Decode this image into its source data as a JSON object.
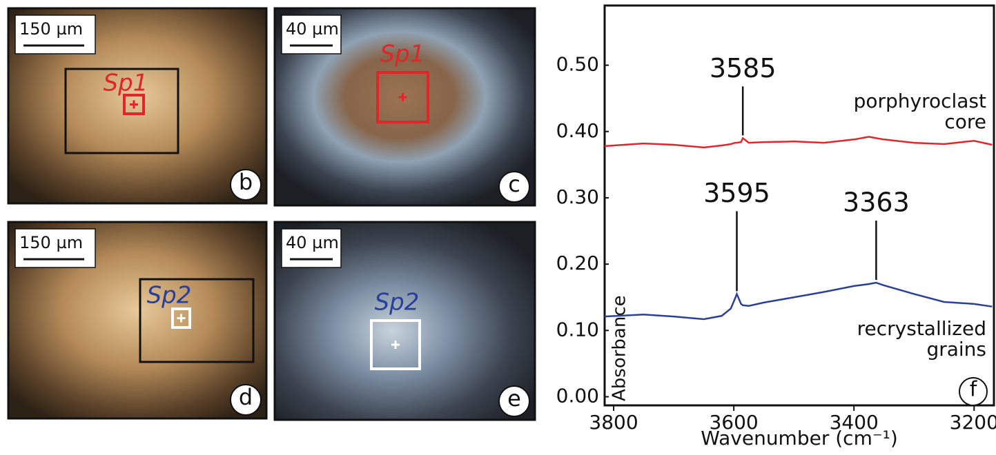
{
  "panels": [
    {
      "letter": "b",
      "scale": "150 µm",
      "spot": "Sp1"
    },
    {
      "letter": "c",
      "scale": "40 µm",
      "spot": "Sp1"
    },
    {
      "letter": "d",
      "scale": "150 µm",
      "spot": "Sp2"
    },
    {
      "letter": "e",
      "scale": "40 µm",
      "spot": "Sp2"
    }
  ],
  "chart_data": {
    "type": "line",
    "panel_letter": "f",
    "x_label": "Wavenumber (cm⁻¹)",
    "y_label": "Absorbance",
    "x": [
      3815,
      3750,
      3700,
      3650,
      3620,
      3605,
      3598,
      3595,
      3588,
      3585,
      3575,
      3550,
      3500,
      3450,
      3400,
      3375,
      3363,
      3350,
      3300,
      3250,
      3200,
      3170
    ],
    "series": [
      {
        "name": "porphyroclast core",
        "color": "#e0262b",
        "values": [
          0.378,
          0.382,
          0.38,
          0.376,
          0.379,
          0.381,
          0.383,
          0.383,
          0.384,
          0.39,
          0.383,
          0.384,
          0.385,
          0.383,
          0.388,
          0.392,
          0.39,
          0.388,
          0.383,
          0.381,
          0.386,
          0.38
        ]
      },
      {
        "name": "recrystallized grains",
        "color": "#2a3f9a",
        "values": [
          0.121,
          0.124,
          0.121,
          0.117,
          0.122,
          0.133,
          0.148,
          0.155,
          0.14,
          0.138,
          0.137,
          0.142,
          0.15,
          0.158,
          0.167,
          0.17,
          0.172,
          0.168,
          0.155,
          0.143,
          0.14,
          0.136
        ]
      }
    ],
    "annotations": [
      {
        "x": 3585,
        "y": 0.39
      },
      {
        "x": 3595,
        "y": 0.155
      },
      {
        "x": 3363,
        "y": 0.172
      }
    ],
    "xlim": [
      3815,
      3167
    ],
    "xticks": [
      3800,
      3600,
      3400,
      3200
    ],
    "ylim": [
      -0.013,
      0.59
    ],
    "yticks": [
      {
        "value": 0,
        "label": "0.00"
      },
      {
        "value": 0.1,
        "label": "0.10"
      },
      {
        "value": 0.2,
        "label": "0.20"
      },
      {
        "value": 0.3,
        "label": "0.30"
      },
      {
        "value": 0.4,
        "label": "0.40"
      },
      {
        "value": 0.5,
        "label": "0.50"
      }
    ],
    "grid": false
  }
}
